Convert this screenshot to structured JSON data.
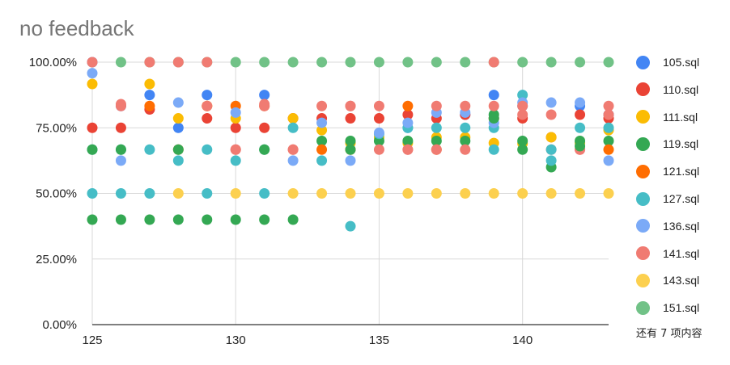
{
  "colors": {
    "105.sql": "#4285f4",
    "110.sql": "#ea4335",
    "111.sql": "#fbbc04",
    "119.sql": "#34a853",
    "121.sql": "#ff6d01",
    "127.sql": "#46bdc6",
    "136.sql": "#7baaf7",
    "141.sql": "#f07b72",
    "143.sql": "#fcd04f",
    "151.sql": "#71c287",
    "grid": "#d9d9d9",
    "axis": "#333333"
  },
  "legend": {
    "items": [
      "105.sql",
      "110.sql",
      "111.sql",
      "119.sql",
      "121.sql",
      "127.sql",
      "136.sql",
      "141.sql",
      "143.sql",
      "151.sql"
    ],
    "more_label": "还有 7 项内容"
  },
  "chart_data": {
    "type": "scatter",
    "title": "no feedback",
    "xlabel": "",
    "ylabel": "",
    "xlim": [
      125,
      143
    ],
    "ylim": [
      0,
      1
    ],
    "x_ticks": [
      125,
      130,
      135,
      140
    ],
    "y_ticks": [
      "0.00%",
      "25.00%",
      "50.00%",
      "75.00%",
      "100.00%"
    ],
    "grid": true,
    "legend_position": "right",
    "series": [
      {
        "name": "105.sql",
        "points": [
          [
            125,
            1.0
          ],
          [
            126,
            0.833
          ],
          [
            127,
            0.875
          ],
          [
            128,
            0.75
          ],
          [
            129,
            0.875
          ],
          [
            131,
            0.875
          ],
          [
            136,
            0.75
          ],
          [
            138,
            0.8
          ],
          [
            139,
            0.875
          ],
          [
            140,
            0.833
          ],
          [
            142,
            0.833
          ],
          [
            143,
            0.8
          ]
        ]
      },
      {
        "name": "110.sql",
        "points": [
          [
            125,
            0.75
          ],
          [
            126,
            0.75
          ],
          [
            127,
            0.82
          ],
          [
            129,
            0.786
          ],
          [
            130,
            0.75
          ],
          [
            131,
            0.75
          ],
          [
            132,
            0.786
          ],
          [
            133,
            0.786
          ],
          [
            134,
            0.786
          ],
          [
            135,
            0.786
          ],
          [
            136,
            0.8
          ],
          [
            137,
            0.786
          ],
          [
            138,
            0.8
          ],
          [
            139,
            0.786
          ],
          [
            140,
            0.786
          ],
          [
            141,
            0.714
          ],
          [
            142,
            0.8
          ],
          [
            143,
            0.786
          ]
        ]
      },
      {
        "name": "111.sql",
        "points": [
          [
            125,
            0.917
          ],
          [
            127,
            0.917
          ],
          [
            128,
            0.786
          ],
          [
            129,
            0.833
          ],
          [
            130,
            0.786
          ],
          [
            132,
            0.786
          ],
          [
            133,
            0.741
          ],
          [
            134,
            0.692
          ],
          [
            135,
            0.714
          ],
          [
            136,
            0.692
          ],
          [
            137,
            0.714
          ],
          [
            138,
            0.714
          ],
          [
            139,
            0.692
          ],
          [
            140,
            0.69
          ],
          [
            141,
            0.714
          ],
          [
            142,
            0.692
          ],
          [
            143,
            0.741
          ]
        ]
      },
      {
        "name": "119.sql",
        "points": [
          [
            125,
            0.4
          ],
          [
            126,
            0.4
          ],
          [
            127,
            0.4
          ],
          [
            128,
            0.4
          ],
          [
            129,
            0.4
          ],
          [
            130,
            0.4
          ],
          [
            131,
            0.4
          ],
          [
            132,
            0.4
          ],
          [
            133,
            0.7
          ],
          [
            134,
            0.7
          ],
          [
            135,
            0.7
          ],
          [
            136,
            0.7
          ],
          [
            137,
            0.7
          ],
          [
            138,
            0.7
          ],
          [
            139,
            0.8
          ],
          [
            140,
            0.7
          ],
          [
            141,
            0.6
          ],
          [
            142,
            0.7
          ],
          [
            143,
            0.7
          ]
        ]
      },
      {
        "name": "121.sql",
        "points": [
          [
            127,
            0.833
          ],
          [
            128,
            0.667
          ],
          [
            129,
            0.833
          ],
          [
            130,
            0.833
          ],
          [
            131,
            0.833
          ],
          [
            133,
            0.667
          ],
          [
            134,
            0.667
          ],
          [
            136,
            0.833
          ],
          [
            137,
            0.667
          ],
          [
            143,
            0.667
          ]
        ]
      },
      {
        "name": "127.sql",
        "points": [
          [
            125,
            0.5
          ],
          [
            126,
            0.5
          ],
          [
            127,
            0.5
          ],
          [
            128,
            0.625
          ],
          [
            129,
            0.5
          ],
          [
            130,
            0.625
          ],
          [
            131,
            0.5
          ],
          [
            132,
            0.75
          ],
          [
            133,
            0.625
          ],
          [
            134,
            0.375
          ],
          [
            135,
            0.727
          ],
          [
            136,
            0.75
          ],
          [
            137,
            0.75
          ],
          [
            138,
            0.75
          ],
          [
            139,
            0.75
          ],
          [
            140,
            0.875
          ],
          [
            141,
            0.625
          ],
          [
            142,
            0.75
          ],
          [
            143,
            0.75
          ]
        ]
      },
      {
        "name": "136.sql",
        "points": [
          [
            125,
            0.958
          ],
          [
            126,
            0.625
          ],
          [
            128,
            0.846
          ],
          [
            130,
            0.808
          ],
          [
            132,
            0.625
          ],
          [
            133,
            0.769
          ],
          [
            134,
            0.625
          ],
          [
            135,
            0.731
          ],
          [
            136,
            0.769
          ],
          [
            137,
            0.808
          ],
          [
            138,
            0.808
          ],
          [
            139,
            0.769
          ],
          [
            140,
            0.846
          ],
          [
            141,
            0.846
          ],
          [
            142,
            0.846
          ],
          [
            143,
            0.625
          ]
        ]
      },
      {
        "name": "141.sql",
        "points": [
          [
            126,
            0.833
          ],
          [
            129,
            0.833
          ],
          [
            130,
            0.667
          ],
          [
            131,
            0.833
          ],
          [
            132,
            0.667
          ],
          [
            134,
            0.833
          ],
          [
            135,
            0.833
          ],
          [
            136,
            0.667
          ],
          [
            137,
            0.667
          ],
          [
            138,
            0.667
          ],
          [
            139,
            0.833
          ],
          [
            140,
            0.8
          ],
          [
            141,
            0.8
          ],
          [
            142,
            0.667
          ],
          [
            143,
            0.8
          ]
        ]
      },
      {
        "name": "143.sql",
        "points": [
          [
            128,
            0.5
          ],
          [
            130,
            0.5
          ],
          [
            132,
            0.5
          ],
          [
            133,
            0.5
          ],
          [
            134,
            0.5
          ],
          [
            135,
            0.5
          ],
          [
            136,
            0.5
          ],
          [
            137,
            0.5
          ],
          [
            138,
            0.5
          ],
          [
            139,
            0.5
          ],
          [
            140,
            0.5
          ],
          [
            141,
            0.5
          ],
          [
            142,
            0.5
          ],
          [
            143,
            0.5
          ]
        ]
      },
      {
        "name": "151.sql",
        "points": [
          [
            126,
            1.0
          ],
          [
            127,
            1.0
          ],
          [
            128,
            1.0
          ],
          [
            129,
            1.0
          ],
          [
            130,
            1.0
          ],
          [
            131,
            1.0
          ],
          [
            132,
            1.0
          ],
          [
            133,
            1.0
          ],
          [
            134,
            1.0
          ],
          [
            135,
            1.0
          ],
          [
            136,
            1.0
          ],
          [
            137,
            1.0
          ],
          [
            138,
            1.0
          ],
          [
            139,
            1.0
          ],
          [
            140,
            1.0
          ],
          [
            141,
            1.0
          ],
          [
            142,
            1.0
          ],
          [
            143,
            1.0
          ]
        ]
      },
      {
        "name": "",
        "color_ref": "141.sql",
        "points": [
          [
            125,
            1.0
          ],
          [
            126,
            0.84
          ],
          [
            127,
            1.0
          ],
          [
            128,
            1.0
          ],
          [
            129,
            1.0
          ],
          [
            130,
            0.667
          ],
          [
            131,
            0.84
          ],
          [
            132,
            0.667
          ],
          [
            133,
            0.833
          ],
          [
            134,
            0.833
          ],
          [
            135,
            0.667
          ],
          [
            136,
            0.667
          ],
          [
            137,
            0.833
          ],
          [
            138,
            0.833
          ],
          [
            139,
            1.0
          ],
          [
            140,
            0.833
          ],
          [
            141,
            0.667
          ],
          [
            142,
            0.667
          ],
          [
            143,
            0.833
          ]
        ]
      },
      {
        "name": "",
        "color_ref": "127.sql",
        "points": [
          [
            125,
            0.667
          ],
          [
            126,
            0.667
          ],
          [
            127,
            0.667
          ],
          [
            129,
            0.667
          ],
          [
            131,
            0.667
          ],
          [
            139,
            0.667
          ],
          [
            141,
            0.667
          ]
        ]
      },
      {
        "name": "",
        "color_ref": "119.sql",
        "points": [
          [
            125,
            0.667
          ],
          [
            126,
            0.667
          ],
          [
            128,
            0.667
          ],
          [
            131,
            0.667
          ],
          [
            134,
            0.667
          ],
          [
            139,
            0.786
          ],
          [
            140,
            0.667
          ],
          [
            142,
            0.68
          ]
        ]
      }
    ]
  }
}
